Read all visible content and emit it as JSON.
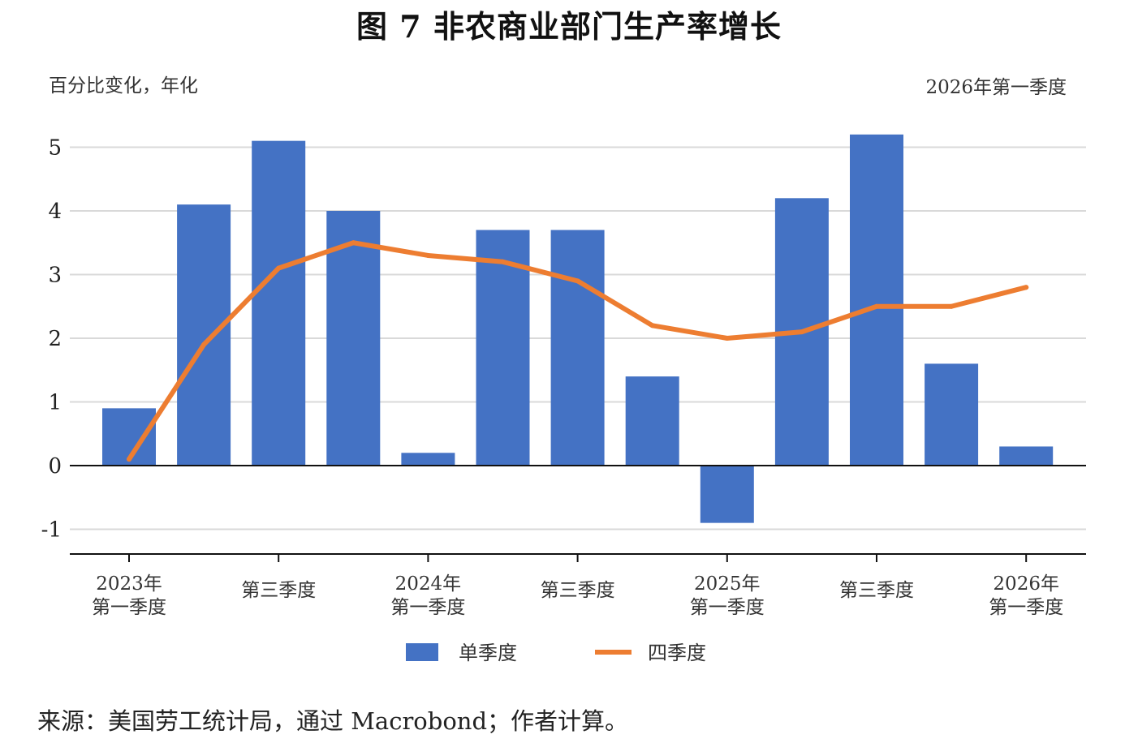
{
  "header": {
    "title": "图 7 非农商业部门生产率增长",
    "unit_label": "百分比变化，年化",
    "period_label": "2026年第一季度"
  },
  "footer": {
    "source": "来源：美国劳工统计局，通过 Macrobond；作者计算。"
  },
  "chart_data": {
    "type": "bar",
    "title": "图 7 非农商业部门生产率增长",
    "ylabel": "百分比变化，年化",
    "ylim": [
      -1.3,
      5.5
    ],
    "yticks": [
      -1,
      0,
      1,
      2,
      3,
      4,
      5
    ],
    "grid": true,
    "legend_position": "bottom",
    "categories": [
      "2023Q1",
      "2023Q2",
      "2023Q3",
      "2023Q4",
      "2024Q1",
      "2024Q2",
      "2024Q3",
      "2024Q4",
      "2025Q1",
      "2025Q2",
      "2025Q3",
      "2025Q4",
      "2026Q1"
    ],
    "x_tick_labels": [
      {
        "index": 0,
        "lines": [
          "2023年",
          "第一季度"
        ]
      },
      {
        "index": 2,
        "lines": [
          "第三季度"
        ]
      },
      {
        "index": 4,
        "lines": [
          "2024年",
          "第一季度"
        ]
      },
      {
        "index": 6,
        "lines": [
          "第三季度"
        ]
      },
      {
        "index": 8,
        "lines": [
          "2025年",
          "第一季度"
        ]
      },
      {
        "index": 10,
        "lines": [
          "第三季度"
        ]
      },
      {
        "index": 12,
        "lines": [
          "2026年",
          "第一季度"
        ]
      }
    ],
    "series": [
      {
        "name": "单季度",
        "type": "bar",
        "color": "#4472C4",
        "values": [
          0.9,
          4.1,
          5.1,
          4.0,
          0.2,
          3.7,
          3.7,
          1.4,
          -0.9,
          4.2,
          5.2,
          1.6,
          0.3
        ]
      },
      {
        "name": "四季度",
        "type": "line",
        "color": "#ED7D31",
        "values": [
          0.1,
          1.9,
          3.1,
          3.5,
          3.3,
          3.2,
          2.9,
          2.2,
          2.0,
          2.1,
          2.5,
          2.5,
          2.8
        ]
      }
    ]
  }
}
